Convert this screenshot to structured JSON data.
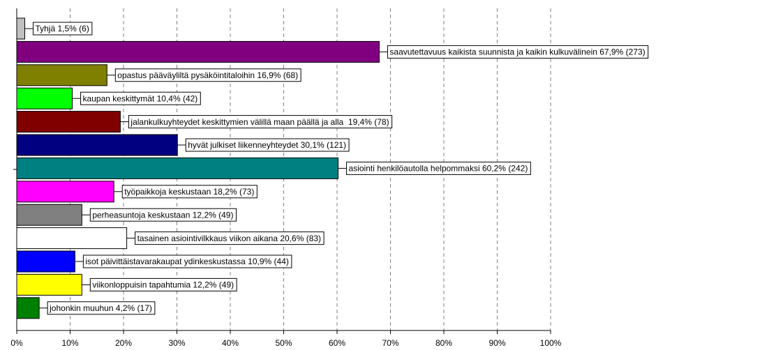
{
  "chart_data": {
    "type": "bar",
    "orientation": "horizontal",
    "values": [
      1.5,
      67.9,
      16.9,
      10.4,
      19.4,
      30.1,
      60.2,
      18.2,
      12.2,
      20.6,
      10.9,
      12.2,
      4.2
    ],
    "value_labels": [
      "Tyhjä 1,5% (6)",
      "saavutettavuus kaikista suunnista ja kaikin kulkuvälinein 67,9% (273)",
      "opastus pääväyliltä pysäköintitaloihin 16,9% (68)",
      "kaupan keskittymät 10,4% (42)",
      "jalankulkuyhteydet keskittymien välillä maan päällä ja alla  19,4% (78)",
      "hyvät julkiset liikenneyhteydet 30,1% (121)",
      "asiointi henkilöautolla helpommaksi 60,2% (242)",
      "työpaikkoja keskustaan 18,2% (73)",
      "perheasuntoja keskustaan 12,2% (49)",
      "tasainen asiointivilkkaus viikon aikana 20,6% (83)",
      "isot päivittäistavarakaupat ydinkeskustassa 10,9% (44)",
      "viikonloppuisin tapahtumia 12,2% (49)",
      "johonkin muuhun 4,2% (17)"
    ],
    "colors": [
      "#c0c0c0",
      "#800080",
      "#808000",
      "#00ff00",
      "#800000",
      "#000080",
      "#008080",
      "#ff00ff",
      "#808080",
      "#ffffff",
      "#0000ff",
      "#ffff00",
      "#008000"
    ],
    "xlim": [
      0,
      100
    ],
    "xticks": [
      {
        "value": 0,
        "label": "0%"
      },
      {
        "value": 10,
        "label": "10%"
      },
      {
        "value": 20,
        "label": "20%"
      },
      {
        "value": 30,
        "label": "30%"
      },
      {
        "value": 40,
        "label": "40%"
      },
      {
        "value": 50,
        "label": "50%"
      },
      {
        "value": 60,
        "label": "60%"
      },
      {
        "value": 70,
        "label": "70%"
      },
      {
        "value": 80,
        "label": "80%"
      },
      {
        "value": 90,
        "label": "90%"
      },
      {
        "value": 100,
        "label": "100%"
      }
    ],
    "grid": true
  }
}
